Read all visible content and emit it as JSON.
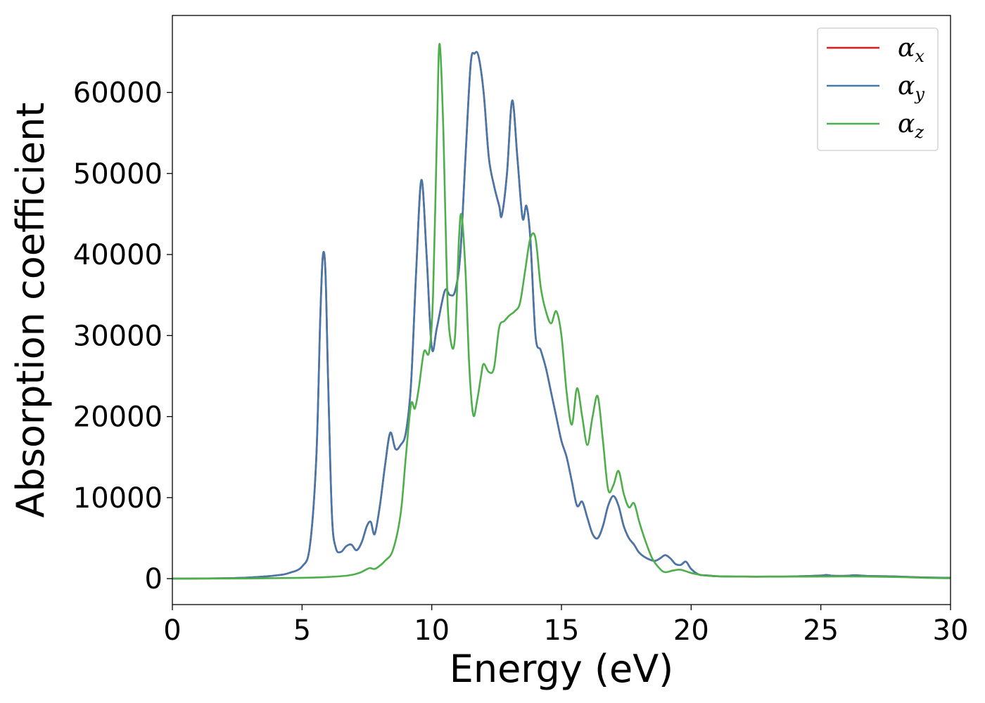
{
  "chart_data": {
    "type": "line",
    "xlabel": "Energy (eV)",
    "ylabel": "Absorption coefficient",
    "xlim": [
      0,
      30
    ],
    "ylim": [
      -3200,
      69500
    ],
    "xticks": [
      0,
      5,
      10,
      15,
      20,
      25,
      30
    ],
    "yticks": [
      0,
      10000,
      20000,
      30000,
      40000,
      50000,
      60000
    ],
    "grid": false,
    "legend_position": "top-right",
    "series": [
      {
        "name": "α_x",
        "symbol": "α",
        "subscript": "x",
        "color": "#e41a1c",
        "x": [
          0,
          2,
          3,
          4,
          4.5,
          5,
          5.3,
          5.55,
          5.7,
          5.8,
          5.9,
          6.0,
          6.15,
          6.3,
          6.5,
          6.7,
          6.9,
          7.1,
          7.3,
          7.5,
          7.65,
          7.8,
          8.0,
          8.2,
          8.4,
          8.6,
          8.8,
          9.0,
          9.2,
          9.4,
          9.6,
          9.8,
          10.0,
          10.2,
          10.5,
          10.7,
          10.9,
          11.1,
          11.3,
          11.5,
          11.65,
          11.8,
          12.0,
          12.2,
          12.4,
          12.6,
          12.7,
          12.9,
          13.1,
          13.3,
          13.5,
          13.65,
          13.8,
          14.0,
          14.2,
          14.4,
          14.6,
          14.8,
          15.0,
          15.2,
          15.4,
          15.6,
          15.8,
          16.0,
          16.2,
          16.4,
          16.6,
          16.8,
          17.0,
          17.2,
          17.4,
          17.6,
          17.8,
          18.0,
          18.3,
          18.6,
          18.8,
          19.0,
          19.2,
          19.4,
          19.6,
          19.8,
          20.0,
          20.3,
          20.6,
          21,
          22,
          23,
          24,
          25,
          25.2,
          25.5,
          26,
          26.3,
          26.8,
          27.5,
          28,
          29,
          30
        ],
        "y": [
          0,
          50,
          150,
          400,
          700,
          1500,
          4000,
          15000,
          32000,
          39800,
          38000,
          25000,
          8000,
          3800,
          3300,
          4000,
          4200,
          3500,
          4500,
          6500,
          7000,
          5500,
          9000,
          14000,
          18000,
          16000,
          16500,
          18000,
          24000,
          38000,
          49200,
          40000,
          28500,
          31000,
          35500,
          35000,
          35500,
          40000,
          52000,
          63500,
          64800,
          64500,
          60000,
          52000,
          48500,
          46000,
          44800,
          50000,
          59000,
          52000,
          44500,
          46000,
          42000,
          30000,
          28200,
          26000,
          23000,
          20000,
          17000,
          15000,
          12000,
          9000,
          9500,
          7500,
          5500,
          5000,
          6500,
          9000,
          10200,
          9000,
          6500,
          5000,
          4200,
          3200,
          2500,
          2200,
          2500,
          2900,
          2500,
          1800,
          1700,
          2100,
          1200,
          500,
          400,
          300,
          250,
          250,
          280,
          380,
          450,
          350,
          350,
          420,
          330,
          300,
          250,
          150,
          100
        ]
      },
      {
        "name": "α_y",
        "symbol": "α",
        "subscript": "y",
        "color": "#4477aa",
        "x": [
          0,
          2,
          3,
          4,
          4.5,
          5,
          5.3,
          5.55,
          5.7,
          5.8,
          5.9,
          6.0,
          6.15,
          6.3,
          6.5,
          6.7,
          6.9,
          7.1,
          7.3,
          7.5,
          7.65,
          7.8,
          8.0,
          8.2,
          8.4,
          8.6,
          8.8,
          9.0,
          9.2,
          9.4,
          9.6,
          9.8,
          10.0,
          10.2,
          10.5,
          10.7,
          10.9,
          11.1,
          11.3,
          11.5,
          11.65,
          11.8,
          12.0,
          12.2,
          12.4,
          12.6,
          12.7,
          12.9,
          13.1,
          13.3,
          13.5,
          13.65,
          13.8,
          14.0,
          14.2,
          14.4,
          14.6,
          14.8,
          15.0,
          15.2,
          15.4,
          15.6,
          15.8,
          16.0,
          16.2,
          16.4,
          16.6,
          16.8,
          17.0,
          17.2,
          17.4,
          17.6,
          17.8,
          18.0,
          18.3,
          18.6,
          18.8,
          19.0,
          19.2,
          19.4,
          19.6,
          19.8,
          20.0,
          20.3,
          20.6,
          21,
          22,
          23,
          24,
          25,
          25.2,
          25.5,
          26,
          26.3,
          26.8,
          27.5,
          28,
          29,
          30
        ],
        "y": [
          0,
          50,
          150,
          400,
          700,
          1500,
          4000,
          15000,
          32000,
          39800,
          38000,
          25000,
          8000,
          3800,
          3300,
          4000,
          4200,
          3500,
          4500,
          6500,
          7000,
          5500,
          9000,
          14000,
          18000,
          16000,
          16500,
          18000,
          24000,
          38000,
          49200,
          40000,
          28500,
          31000,
          35500,
          35000,
          35500,
          40000,
          52000,
          63500,
          64800,
          64500,
          60000,
          52000,
          48500,
          46000,
          44800,
          50000,
          59000,
          52000,
          44500,
          46000,
          42000,
          30000,
          28200,
          26000,
          23000,
          20000,
          17000,
          15000,
          12000,
          9000,
          9500,
          7500,
          5500,
          5000,
          6500,
          9000,
          10200,
          9000,
          6500,
          5000,
          4200,
          3200,
          2500,
          2200,
          2500,
          2900,
          2500,
          1800,
          1700,
          2100,
          1200,
          500,
          400,
          300,
          250,
          250,
          280,
          380,
          450,
          350,
          350,
          420,
          330,
          300,
          250,
          150,
          100
        ]
      },
      {
        "name": "α_z",
        "symbol": "α",
        "subscript": "z",
        "color": "#4daf4a",
        "x": [
          0,
          3,
          5,
          6,
          6.8,
          7.2,
          7.4,
          7.6,
          7.8,
          8.0,
          8.2,
          8.5,
          8.8,
          9.0,
          9.2,
          9.35,
          9.5,
          9.7,
          9.9,
          10.05,
          10.2,
          10.3,
          10.45,
          10.6,
          10.75,
          10.9,
          11.05,
          11.15,
          11.3,
          11.45,
          11.6,
          11.75,
          11.9,
          12.0,
          12.2,
          12.4,
          12.6,
          12.8,
          13.0,
          13.2,
          13.4,
          13.6,
          13.8,
          14.0,
          14.2,
          14.4,
          14.6,
          14.8,
          15.0,
          15.2,
          15.4,
          15.6,
          15.8,
          16.0,
          16.2,
          16.4,
          16.6,
          16.8,
          17.0,
          17.2,
          17.4,
          17.6,
          17.8,
          18.0,
          18.2,
          18.5,
          18.8,
          19.0,
          19.3,
          19.6,
          20.0,
          20.5,
          21,
          22,
          24,
          26,
          28,
          29,
          30
        ],
        "y": [
          0,
          30,
          100,
          200,
          400,
          700,
          1000,
          1300,
          1200,
          1600,
          2200,
          3500,
          8000,
          15000,
          21500,
          21000,
          23500,
          28000,
          28000,
          35000,
          55000,
          66000,
          55000,
          35000,
          29000,
          30000,
          42000,
          44800,
          38000,
          26000,
          20200,
          22000,
          25000,
          26500,
          25500,
          26000,
          31000,
          31800,
          32500,
          33000,
          34000,
          38000,
          42000,
          42000,
          36000,
          33000,
          31500,
          33000,
          30000,
          23000,
          19000,
          23500,
          20000,
          16500,
          20000,
          22500,
          17000,
          11000,
          11500,
          13300,
          10500,
          8800,
          9300,
          7000,
          5000,
          2500,
          1200,
          800,
          1000,
          1100,
          700,
          400,
          300,
          250,
          250,
          280,
          200,
          100,
          50
        ]
      }
    ]
  }
}
